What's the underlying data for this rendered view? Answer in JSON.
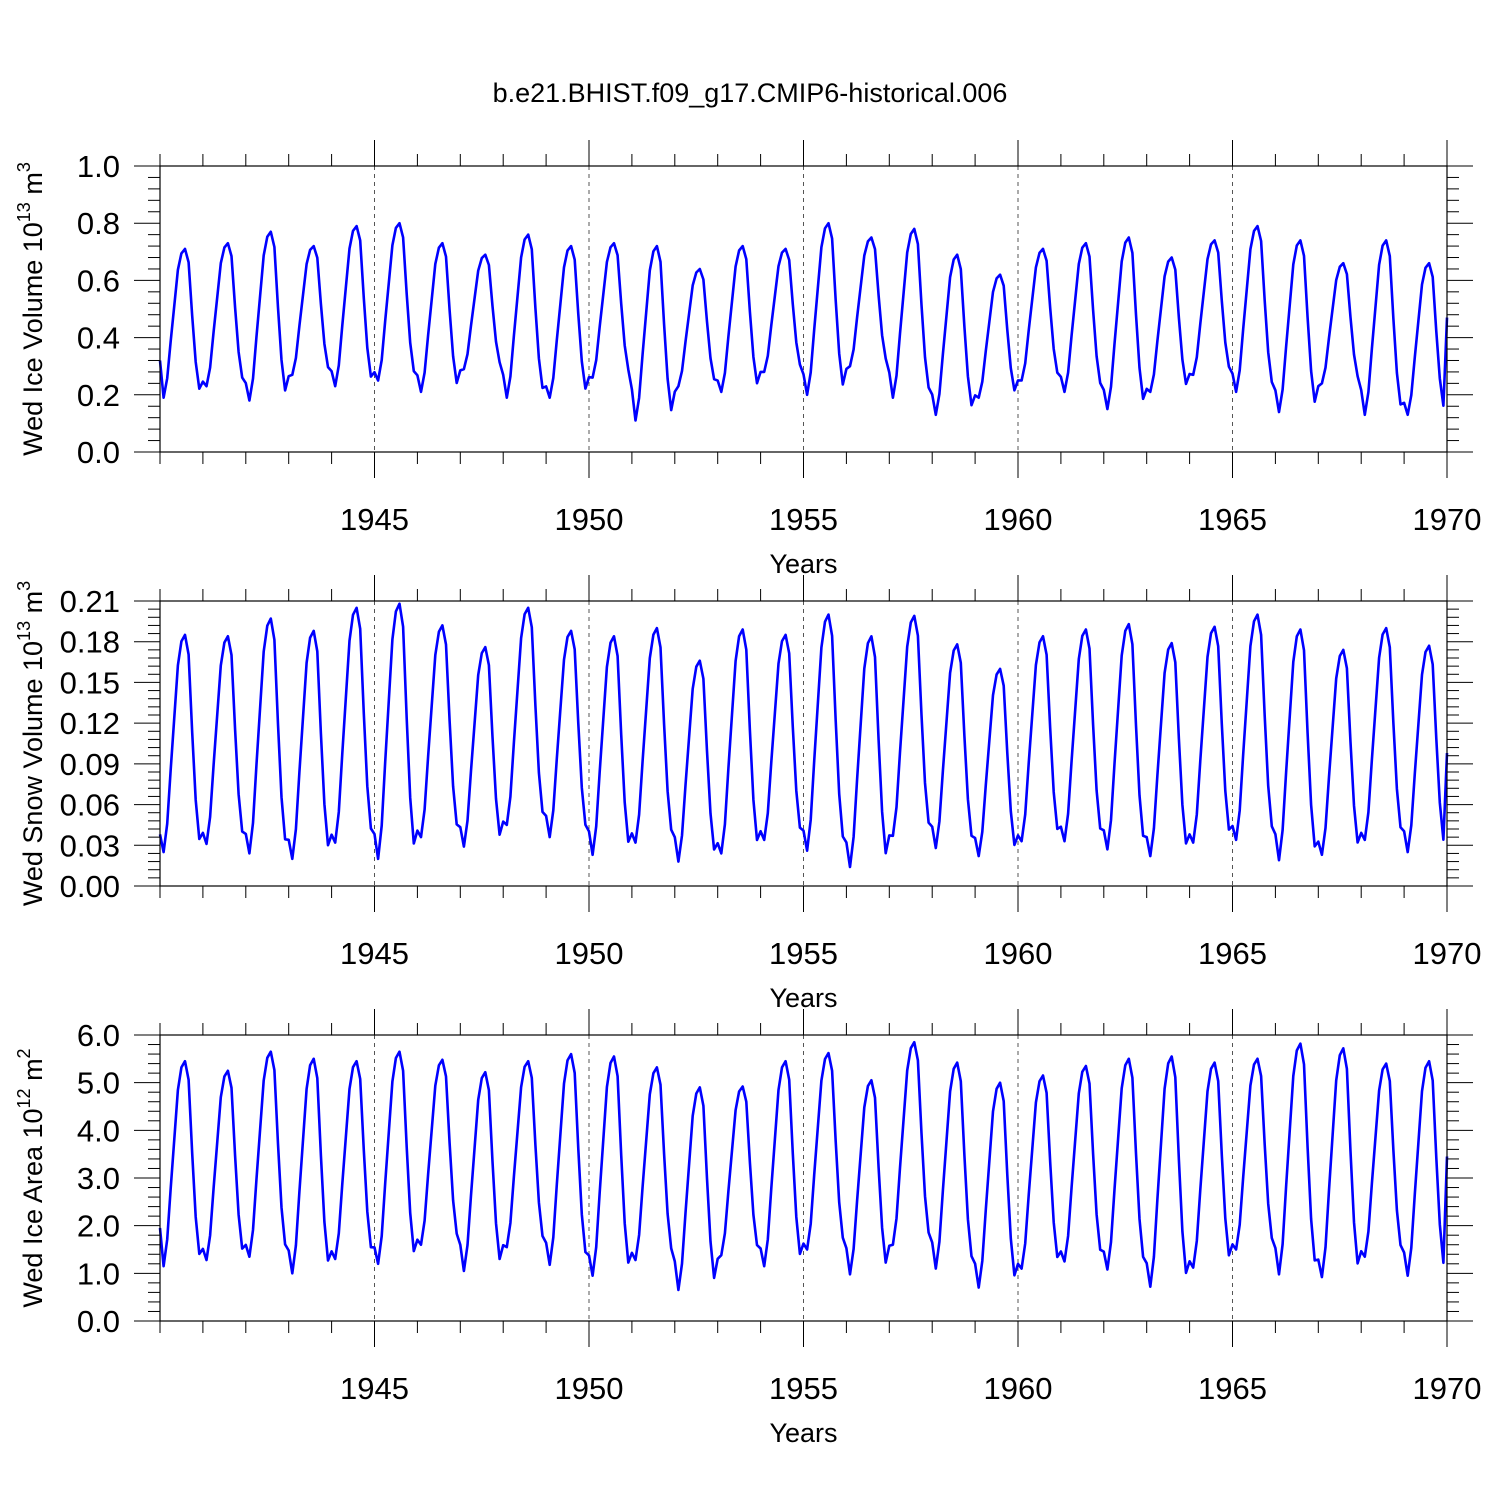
{
  "title": "b.e21.BHIST.f09_g17.CMIP6-historical.006",
  "series_color": "#0000ff",
  "chart_data": [
    {
      "type": "line",
      "name": "ice-volume",
      "ylabel": "Wed Ice Volume 10",
      "ylabel_exp": "13",
      "ylabel_unit": " m",
      "ylabel_unit_exp": "3",
      "xlabel": "Years",
      "xlim": [
        1940.0,
        1970.0
      ],
      "ylim": [
        0.0,
        1.0
      ],
      "xticks": [
        1945,
        1950,
        1955,
        1960,
        1965,
        1970
      ],
      "yticks": [
        0.0,
        0.2,
        0.4,
        0.6,
        0.8,
        1.0
      ],
      "ytick_labels": [
        "0.0",
        "0.2",
        "0.4",
        "0.6",
        "0.8",
        "1.0"
      ],
      "start_year": 1940.0,
      "step": 0.0833,
      "annual_min": [
        0.19,
        0.23,
        0.18,
        0.27,
        0.23,
        0.25,
        0.21,
        0.29,
        0.19,
        0.19,
        0.26,
        0.11,
        0.23,
        0.21,
        0.28,
        0.2,
        0.3,
        0.19,
        0.13,
        0.19,
        0.25,
        0.21,
        0.15,
        0.21,
        0.27,
        0.21,
        0.14,
        0.24,
        0.13,
        0.13
      ],
      "annual_max": [
        0.71,
        0.73,
        0.77,
        0.72,
        0.79,
        0.8,
        0.73,
        0.69,
        0.76,
        0.72,
        0.73,
        0.72,
        0.64,
        0.72,
        0.71,
        0.8,
        0.75,
        0.78,
        0.69,
        0.62,
        0.71,
        0.73,
        0.75,
        0.68,
        0.74,
        0.79,
        0.74,
        0.66,
        0.74,
        0.66
      ],
      "first_value": 0.32,
      "last_value": 0.47
    },
    {
      "type": "line",
      "name": "snow-volume",
      "ylabel": "Wed Snow Volume 10",
      "ylabel_exp": "13",
      "ylabel_unit": " m",
      "ylabel_unit_exp": "3",
      "xlabel": "Years",
      "xlim": [
        1940.0,
        1970.0
      ],
      "ylim": [
        0.0,
        0.21
      ],
      "xticks": [
        1945,
        1950,
        1955,
        1960,
        1965,
        1970
      ],
      "yticks": [
        0.0,
        0.03,
        0.06,
        0.09,
        0.12,
        0.15,
        0.18,
        0.21
      ],
      "ytick_labels": [
        "0.00",
        "0.03",
        "0.06",
        "0.09",
        "0.12",
        "0.15",
        "0.18",
        "0.21"
      ],
      "start_year": 1940.0,
      "step": 0.0833,
      "annual_min": [
        0.025,
        0.031,
        0.024,
        0.02,
        0.032,
        0.02,
        0.036,
        0.029,
        0.045,
        0.036,
        0.023,
        0.032,
        0.018,
        0.024,
        0.034,
        0.026,
        0.014,
        0.037,
        0.028,
        0.022,
        0.033,
        0.033,
        0.027,
        0.022,
        0.032,
        0.034,
        0.019,
        0.023,
        0.034,
        0.025
      ],
      "annual_max": [
        0.185,
        0.184,
        0.197,
        0.188,
        0.205,
        0.208,
        0.192,
        0.176,
        0.205,
        0.188,
        0.184,
        0.19,
        0.166,
        0.189,
        0.185,
        0.2,
        0.184,
        0.199,
        0.178,
        0.16,
        0.184,
        0.189,
        0.193,
        0.179,
        0.191,
        0.2,
        0.189,
        0.174,
        0.19,
        0.177
      ],
      "first_value": 0.038,
      "last_value": 0.098
    },
    {
      "type": "line",
      "name": "ice-area",
      "ylabel": "Wed Ice Area 10",
      "ylabel_exp": "12",
      "ylabel_unit": " m",
      "ylabel_unit_exp": "2",
      "xlabel": "Years",
      "xlim": [
        1940.0,
        1970.0
      ],
      "ylim": [
        0.0,
        6.0
      ],
      "xticks": [
        1945,
        1950,
        1955,
        1960,
        1965,
        1970
      ],
      "yticks": [
        0.0,
        1.0,
        2.0,
        3.0,
        4.0,
        5.0,
        6.0
      ],
      "ytick_labels": [
        "0.0",
        "1.0",
        "2.0",
        "3.0",
        "4.0",
        "5.0",
        "6.0"
      ],
      "start_year": 1940.0,
      "step": 0.0833,
      "annual_min": [
        1.15,
        1.28,
        1.35,
        1.0,
        1.3,
        1.2,
        1.6,
        1.05,
        1.55,
        1.18,
        0.95,
        1.28,
        0.65,
        1.38,
        1.15,
        1.5,
        0.98,
        1.6,
        1.1,
        0.7,
        1.1,
        1.25,
        1.08,
        0.72,
        1.12,
        1.5,
        0.98,
        0.92,
        1.35,
        0.95
      ],
      "annual_max": [
        5.45,
        5.25,
        5.65,
        5.5,
        5.45,
        5.65,
        5.48,
        5.22,
        5.45,
        5.6,
        5.55,
        5.32,
        4.9,
        4.92,
        5.45,
        5.62,
        5.05,
        5.85,
        5.42,
        5.0,
        5.15,
        5.35,
        5.5,
        5.55,
        5.42,
        5.5,
        5.82,
        5.72,
        5.4,
        5.45
      ],
      "first_value": 1.95,
      "last_value": 3.45
    }
  ]
}
